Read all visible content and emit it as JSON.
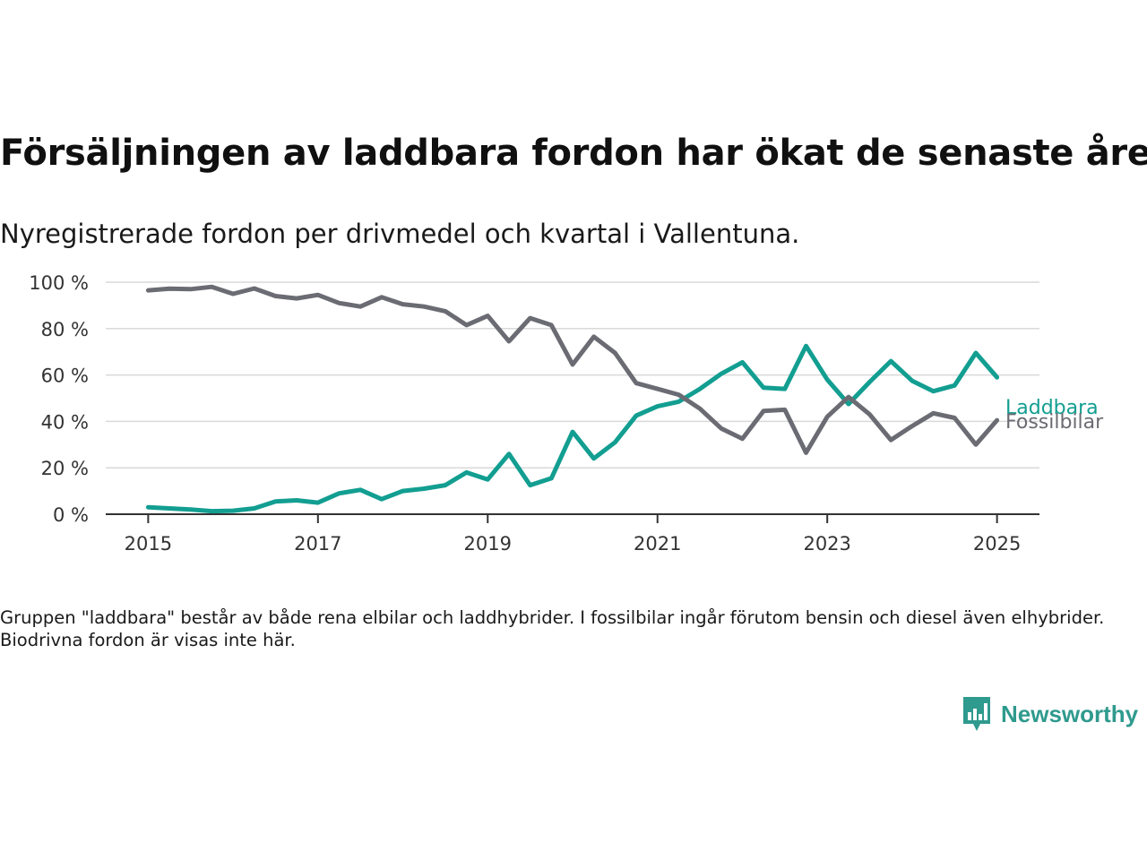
{
  "header": {
    "title": "Försäljningen av laddbara fordon har ökat de senaste åren",
    "subtitle": "Nyregistrerade fordon per drivmedel och kvartal i Vallentuna."
  },
  "footer": {
    "note": "Gruppen \"laddbara\" består av både rena elbilar och laddhybrider. I fossilbilar ingår förutom bensin och diesel även elhybrider. Biodrivna fordon är visas inte här.",
    "brand": "Newsworthy",
    "brand_icon": "bar-chart-icon"
  },
  "colors": {
    "laddbara": "#129e91",
    "fossilbilar": "#6b6b73",
    "brand": "#2f9a8e",
    "grid": "#d9d9d9",
    "axis": "#333333"
  },
  "chart_data": {
    "type": "line",
    "title": "Försäljningen av laddbara fordon har ökat de senaste åren",
    "subtitle": "Nyregistrerade fordon per drivmedel och kvartal i Vallentuna.",
    "xlabel": "",
    "ylabel": "",
    "x_ticks": [
      2015,
      2017,
      2019,
      2021,
      2023,
      2025
    ],
    "y_ticks": [
      "0 %",
      "20 %",
      "40 %",
      "60 %",
      "80 %",
      "100 %"
    ],
    "y_tick_values": [
      0,
      20,
      40,
      60,
      80,
      100
    ],
    "xlim": [
      2014.5,
      2025.5
    ],
    "ylim": [
      0,
      100
    ],
    "grid": true,
    "legend": "direct labels at line ends (right)",
    "x": [
      "2015-01",
      "2015-04",
      "2015-07",
      "2015-10",
      "2016-01",
      "2016-04",
      "2016-07",
      "2016-10",
      "2017-01",
      "2017-04",
      "2017-07",
      "2017-10",
      "2018-01",
      "2018-04",
      "2018-07",
      "2018-10",
      "2019-01",
      "2019-04",
      "2019-07",
      "2019-10",
      "2020-01",
      "2020-04",
      "2020-07",
      "2020-10",
      "2021-01",
      "2021-04",
      "2021-07",
      "2021-10",
      "2022-01",
      "2022-04",
      "2022-07",
      "2022-10",
      "2023-01",
      "2023-04",
      "2023-07",
      "2023-10",
      "2024-01",
      "2024-04",
      "2024-07",
      "2024-10",
      "2025-01"
    ],
    "series": [
      {
        "name": "Laddbara",
        "values": [
          3,
          2.5,
          2,
          1.3,
          1.5,
          2.5,
          5.5,
          6,
          5,
          9,
          10.5,
          6.5,
          10,
          11,
          12.5,
          18,
          15,
          26,
          12.5,
          15.5,
          35.5,
          24,
          31,
          42.5,
          46.5,
          48.5,
          54,
          60.5,
          65.5,
          54.5,
          54,
          72.5,
          58,
          47.5,
          57,
          66,
          57.5,
          53,
          55.5,
          69.5,
          59
        ]
      },
      {
        "name": "Fossilbilar",
        "values": [
          96.5,
          97.2,
          97,
          98,
          95,
          97.3,
          94,
          93,
          94.5,
          91,
          89.5,
          93.5,
          90.5,
          89.5,
          87.5,
          81.5,
          85.5,
          74.5,
          84.5,
          81.5,
          64.5,
          76.5,
          69.5,
          56.5,
          54,
          51.5,
          45.5,
          37,
          32.5,
          44.5,
          45,
          26.5,
          42,
          50.5,
          43,
          32,
          38,
          43.5,
          41.5,
          30,
          40.5
        ]
      }
    ]
  }
}
